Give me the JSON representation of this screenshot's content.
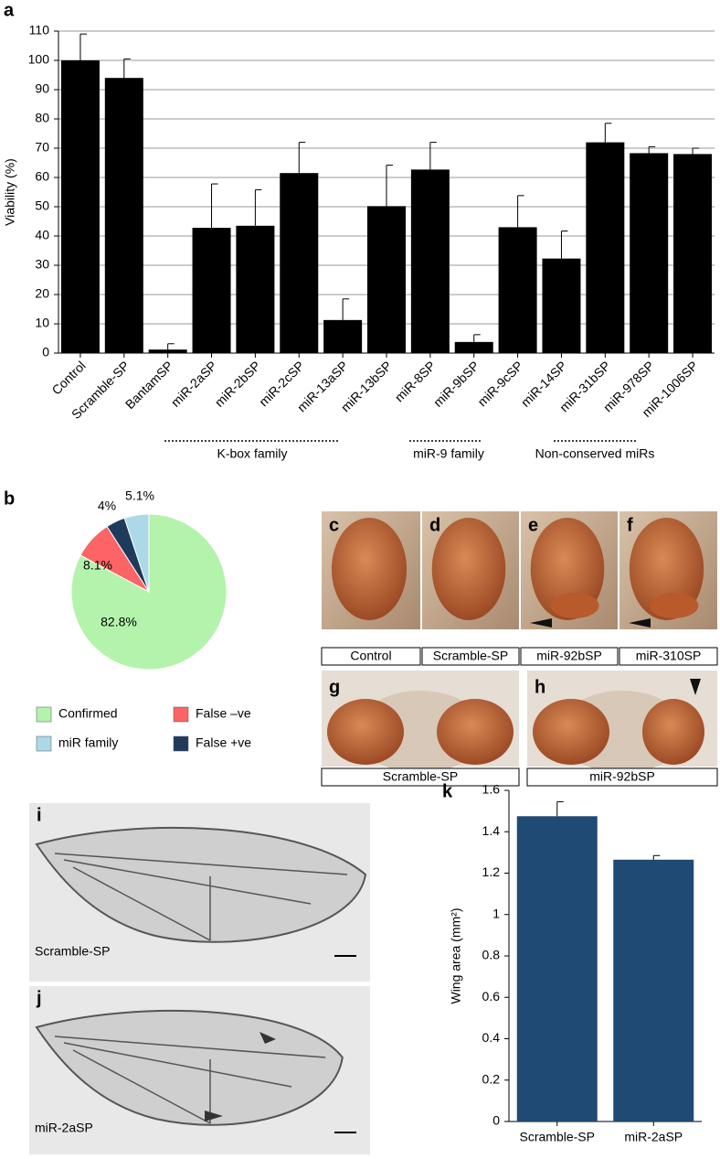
{
  "chart_data": [
    {
      "type": "bar",
      "panel": "a",
      "y_label": "Viability (%)",
      "categories": [
        "Control",
        "Scramble-SP",
        "BantamSP",
        "miR-2aSP",
        "miR-2bSP",
        "miR-2cSP",
        "miR-13aSP",
        "miR-13bSP",
        "miR-8SP",
        "miR-9bSP",
        "miR-9cSP",
        "miR-14SP",
        "miR-31bSP",
        "miR-978SP",
        "miR-1006SP"
      ],
      "values": [
        100,
        94,
        1.2,
        42.8,
        43.5,
        61.5,
        11.3,
        50.2,
        62.7,
        3.8,
        43,
        32.3,
        72,
        68.3,
        68
      ],
      "errors": [
        9,
        6.5,
        2,
        15,
        12.3,
        10.5,
        7.2,
        14,
        9.3,
        2.5,
        10.8,
        9.4,
        6.5,
        2.2,
        2
      ],
      "color": "#000000",
      "ylim": [
        0,
        110
      ],
      "yticks": [
        0,
        10,
        20,
        30,
        40,
        50,
        60,
        70,
        80,
        90,
        100,
        110
      ],
      "grid": true,
      "groups": [
        "K-box family",
        "miR-9 family",
        "Non-conserved miRs"
      ]
    },
    {
      "type": "pie",
      "panel": "b",
      "categories": [
        "Confirmed",
        "False –ve",
        "False +ve",
        "miR family"
      ],
      "values": [
        82.8,
        8.1,
        4,
        5.1
      ],
      "value_labels": [
        "82.8%",
        "8.1%",
        "4%",
        "5.1%"
      ],
      "colors": [
        "#b4f3ac",
        "#fc6465",
        "#1f3b5c",
        "#acd9e8"
      ]
    },
    {
      "type": "bar",
      "panel": "k",
      "y_label": "Wing area (mm²)",
      "categories": [
        "Scramble-SP",
        "miR-2aSP"
      ],
      "values": [
        1.475,
        1.265
      ],
      "errors": [
        0.07,
        0.02
      ],
      "color": "#1f4a73",
      "ylim": [
        0,
        1.6
      ],
      "yticks": [
        0,
        0.2,
        0.4,
        0.6,
        0.8,
        1,
        1.2,
        1.4,
        1.6
      ],
      "grid": false
    }
  ],
  "eye_panels": [
    {
      "letter": "c",
      "caption": "Control"
    },
    {
      "letter": "d",
      "caption": "Scramble-SP"
    },
    {
      "letter": "e",
      "caption": "miR-92bSP"
    },
    {
      "letter": "f",
      "caption": "miR-310SP"
    }
  ],
  "head_panels": [
    {
      "letter": "g",
      "caption": "Scramble-SP"
    },
    {
      "letter": "h",
      "caption": "miR-92bSP"
    }
  ],
  "wing_panels": [
    {
      "letter": "i",
      "caption": "Scramble-SP"
    },
    {
      "letter": "j",
      "caption": "miR-2aSP"
    }
  ]
}
